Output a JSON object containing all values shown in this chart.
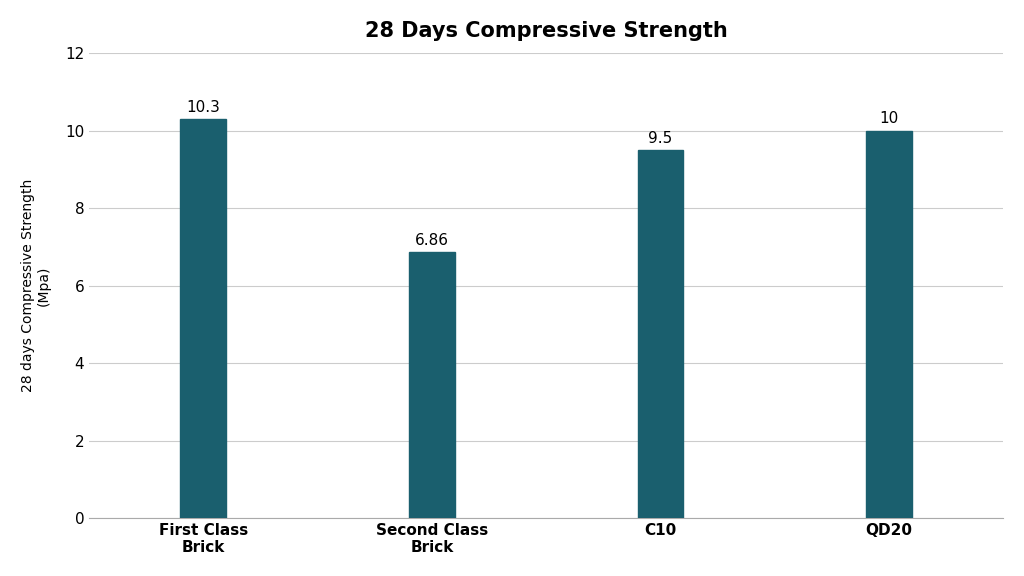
{
  "title": "28 Days Compressive Strength",
  "categories": [
    "First Class\nBrick",
    "Second Class\nBrick",
    "C10",
    "QD20"
  ],
  "values": [
    10.3,
    6.86,
    9.5,
    10
  ],
  "bar_color": "#1a5f6e",
  "ylabel": "28 days Compressive Strength\n(Mpa)",
  "ylim": [
    0,
    12
  ],
  "yticks": [
    0,
    2,
    4,
    6,
    8,
    10,
    12
  ],
  "bar_labels": [
    "10.3",
    "6.86",
    "9.5",
    "10"
  ],
  "background_color": "#ffffff",
  "title_fontsize": 15,
  "label_fontsize": 10,
  "tick_fontsize": 11,
  "bar_width": 0.2
}
